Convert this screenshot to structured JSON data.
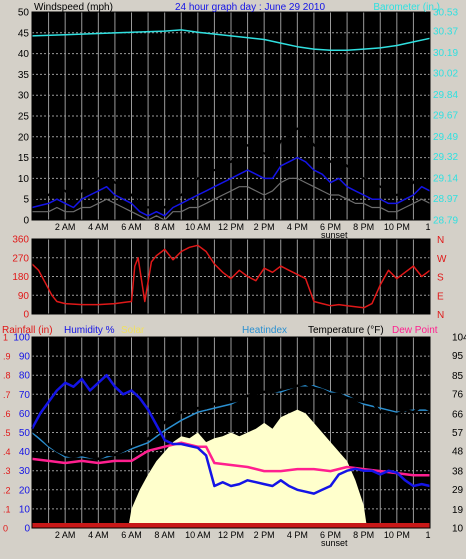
{
  "colors": {
    "bg": "#d4d0c8",
    "plot_bg": "#000000",
    "grid": "#9a9a9a",
    "frame": "#000000",
    "wind": "#000000",
    "gust_avg": "#1414e6",
    "wind_low": "#6e6e6e",
    "barometer": "#30e0e0",
    "direction": "#e01818",
    "rain_text": "#e01818",
    "humidity": "#1414e6",
    "solar_fill": "#ffffcc",
    "solar_text": "#f0e060",
    "heatindex": "#2a8fd0",
    "temperature": "#000000",
    "dewpoint": "#ff1f8f",
    "rain": "#c81818"
  },
  "time_labels": [
    "2 AM",
    "4 AM",
    "6 AM",
    "8 AM",
    "10 AM",
    "12 PM",
    "2 PM",
    "4 PM",
    "6 PM",
    "8 PM",
    "10 PM"
  ],
  "end_tick": "1",
  "sunset_label": "sunset",
  "chart_data": [
    {
      "type": "line",
      "title": "24 hour graph day : June 29 2010",
      "ylabel_left": "Windspeed (mph)",
      "ylabel_right": "Barometer (in.)",
      "x": [
        0,
        24
      ],
      "ylim": [
        0,
        50
      ],
      "yticks_left": [
        0,
        5,
        10,
        15,
        20,
        25,
        30,
        35,
        40,
        45,
        50
      ],
      "ylim_right": [
        28.79,
        30.53
      ],
      "yticks_right": [
        "28.79",
        "28.97",
        "29.14",
        "29.32",
        "29.49",
        "29.67",
        "29.84",
        "30.02",
        "30.19",
        "30.37",
        "30.53"
      ],
      "series": [
        {
          "name": "Barometer",
          "axis": "right",
          "x": [
            0,
            2,
            4,
            6,
            8,
            9,
            10,
            12,
            14,
            15,
            16,
            17,
            18,
            19,
            20,
            21,
            22,
            23,
            24
          ],
          "y": [
            30.33,
            30.34,
            30.35,
            30.36,
            30.37,
            30.38,
            30.36,
            30.33,
            30.3,
            30.27,
            30.24,
            30.22,
            30.21,
            30.21,
            30.22,
            30.23,
            30.25,
            30.28,
            30.31
          ]
        },
        {
          "axis": "left",
          "x": [
            0,
            1,
            1.5,
            2,
            2.5,
            3,
            3.5,
            4,
            4.5,
            5,
            5.5,
            6,
            6.5,
            7,
            7.5,
            8,
            8.5,
            9,
            9.5,
            10,
            10.5,
            11,
            11.5,
            12,
            12.5,
            13,
            13.5,
            14,
            14.5,
            15,
            15.5,
            16,
            16.5,
            17,
            17.5,
            18,
            18.5,
            19,
            19.5,
            20,
            20.5,
            21,
            21.5,
            22,
            22.5,
            23,
            23.5,
            24
          ],
          "y": [
            5,
            6,
            8,
            7,
            5,
            7,
            9,
            10,
            11,
            9,
            8,
            6,
            4,
            3,
            4,
            3,
            5,
            6,
            8,
            10,
            11,
            12,
            13,
            14,
            16,
            18,
            17,
            16,
            15,
            19,
            20,
            22,
            21,
            18,
            16,
            14,
            15,
            13,
            11,
            10,
            9,
            8,
            7,
            6,
            7,
            9,
            12,
            10
          ]
        },
        {
          "axis": "left",
          "x": [
            0,
            1,
            1.5,
            2,
            2.5,
            3,
            3.5,
            4,
            4.5,
            5,
            5.5,
            6,
            6.5,
            7,
            7.5,
            8,
            8.5,
            9,
            9.5,
            10,
            10.5,
            11,
            11.5,
            12,
            12.5,
            13,
            13.5,
            14,
            14.5,
            15,
            15.5,
            16,
            16.5,
            17,
            17.5,
            18,
            18.5,
            19,
            19.5,
            20,
            20.5,
            21,
            21.5,
            22,
            22.5,
            23,
            23.5,
            24
          ],
          "y": [
            3,
            4,
            5,
            4,
            3,
            5,
            6,
            7,
            8,
            6,
            5,
            4,
            2,
            1,
            2,
            1,
            3,
            4,
            5,
            6,
            7,
            8,
            9,
            10,
            11,
            12,
            11,
            10,
            10,
            13,
            14,
            15,
            14,
            12,
            11,
            9,
            10,
            8,
            7,
            6,
            5,
            5,
            4,
            4,
            5,
            6,
            8,
            7
          ]
        },
        {
          "axis": "left",
          "x": [
            0,
            1,
            1.5,
            2,
            2.5,
            3,
            3.5,
            4,
            4.5,
            5,
            5.5,
            6,
            6.5,
            7,
            7.5,
            8,
            8.5,
            9,
            9.5,
            10,
            10.5,
            11,
            11.5,
            12,
            12.5,
            13,
            13.5,
            14,
            14.5,
            15,
            15.5,
            16,
            16.5,
            17,
            17.5,
            18,
            18.5,
            19,
            19.5,
            20,
            20.5,
            21,
            21.5,
            22,
            22.5,
            23,
            23.5,
            24
          ],
          "y": [
            2,
            2,
            3,
            2,
            2,
            3,
            3,
            4,
            5,
            4,
            3,
            2,
            1,
            0,
            1,
            0,
            2,
            2,
            3,
            3,
            4,
            5,
            6,
            7,
            8,
            8,
            7,
            6,
            7,
            9,
            10,
            10,
            9,
            8,
            7,
            6,
            6,
            5,
            4,
            4,
            3,
            3,
            2,
            2,
            3,
            4,
            5,
            4
          ]
        }
      ]
    },
    {
      "type": "line",
      "ylabel_right": [
        "N",
        "W",
        "S",
        "E",
        "N"
      ],
      "ylim": [
        0,
        360
      ],
      "yticks_left": [
        0,
        90,
        180,
        270,
        360
      ],
      "series": [
        {
          "name": "Wind direction",
          "x": [
            0,
            0.4,
            0.8,
            1.2,
            1.5,
            2,
            3,
            4,
            5,
            5.5,
            6,
            6.2,
            6.4,
            6.8,
            7.2,
            7.5,
            8,
            8.5,
            9,
            9.5,
            10,
            10.5,
            11,
            11.5,
            12,
            12.5,
            13,
            13.5,
            14,
            14.5,
            15,
            15.5,
            16,
            16.5,
            17,
            17.5,
            18,
            18.5,
            19,
            19.5,
            20,
            20.5,
            21,
            21.5,
            22,
            22.5,
            23,
            23.5,
            24
          ],
          "y": [
            240,
            210,
            150,
            90,
            60,
            50,
            45,
            45,
            50,
            55,
            60,
            230,
            270,
            60,
            250,
            280,
            310,
            260,
            300,
            320,
            330,
            300,
            240,
            200,
            170,
            210,
            180,
            160,
            220,
            200,
            230,
            210,
            190,
            170,
            60,
            50,
            40,
            45,
            40,
            35,
            30,
            50,
            140,
            210,
            170,
            200,
            230,
            180,
            210
          ]
        }
      ]
    },
    {
      "type": "line",
      "ylabel_left": [
        "Rainfall (in)",
        "Humidity %",
        "Solar"
      ],
      "ylabel_right": [
        "Heatindex",
        "Temperature (°F)",
        "Dew Point"
      ],
      "ylim": [
        0,
        100
      ],
      "yticks_left": [
        0,
        10,
        20,
        30,
        40,
        50,
        60,
        70,
        80,
        90,
        100
      ],
      "yticks_rain": [
        "0",
        ".1",
        ".2",
        ".3",
        ".4",
        ".5",
        ".6",
        ".7",
        ".8",
        ".9",
        "1"
      ],
      "ylim_right": [
        10,
        104
      ],
      "yticks_right": [
        10,
        19,
        29,
        38,
        48,
        57,
        66,
        76,
        85,
        95,
        104
      ],
      "series": [
        {
          "name": "Solar",
          "axis": "left",
          "x": [
            0,
            5.8,
            6,
            6.5,
            7,
            7.5,
            8,
            8.5,
            9,
            9.5,
            10,
            10.5,
            11,
            11.5,
            12,
            12.5,
            13,
            13.5,
            14,
            14.5,
            15,
            15.5,
            16,
            16.5,
            17,
            17.5,
            18,
            18.5,
            19,
            19.5,
            20,
            20.2,
            24
          ],
          "y": [
            0,
            0,
            10,
            20,
            28,
            35,
            40,
            45,
            48,
            47,
            50,
            45,
            47,
            48,
            50,
            48,
            50,
            52,
            55,
            52,
            58,
            60,
            62,
            60,
            55,
            50,
            45,
            40,
            35,
            25,
            12,
            0,
            0
          ]
        },
        {
          "name": "Humidity",
          "axis": "left",
          "x": [
            0,
            0.5,
            1,
            1.5,
            2,
            2.5,
            3,
            3.5,
            4,
            4.5,
            5,
            5.5,
            6,
            6.5,
            7,
            7.5,
            8,
            8.5,
            9,
            9.5,
            10,
            10.5,
            11,
            11.5,
            12,
            12.5,
            13,
            13.5,
            14,
            14.5,
            15,
            15.5,
            16,
            16.5,
            17,
            17.5,
            18,
            18.5,
            19,
            19.5,
            20,
            20.5,
            21,
            21.5,
            22,
            22.5,
            23,
            23.5,
            24
          ],
          "y": [
            52,
            60,
            66,
            72,
            76,
            74,
            78,
            72,
            76,
            80,
            74,
            70,
            72,
            68,
            62,
            54,
            46,
            44,
            44,
            43,
            42,
            38,
            22,
            24,
            22,
            23,
            25,
            24,
            23,
            22,
            25,
            22,
            20,
            19,
            18,
            20,
            22,
            28,
            30,
            31,
            30,
            30,
            28,
            30,
            29,
            25,
            22,
            23,
            22
          ]
        },
        {
          "name": "Heatindex",
          "axis": "right",
          "x": [
            0,
            1,
            2,
            3,
            4,
            5,
            6,
            7,
            8,
            9,
            10,
            11,
            12,
            13,
            14,
            15,
            16,
            17,
            18,
            19,
            20,
            21,
            22,
            23,
            24
          ],
          "y": [
            57,
            50,
            45,
            45,
            44,
            46,
            49,
            52,
            58,
            63,
            67,
            69,
            71,
            75,
            77,
            77,
            80,
            80,
            77,
            75,
            71,
            69,
            67,
            68,
            68
          ]
        },
        {
          "name": "Temperature",
          "axis": "right",
          "x": [
            0,
            0.5,
            1,
            1.5,
            2,
            2.5,
            3,
            3.5,
            4,
            4.5,
            5,
            5.5,
            6,
            6.5,
            7,
            7.5,
            8,
            8.5,
            9,
            9.5,
            10,
            10.5,
            11,
            11.5,
            12,
            12.5,
            13,
            13.5,
            14,
            14.5,
            15,
            15.5,
            16,
            16.5,
            17,
            17.5,
            18,
            18.5,
            19,
            19.5,
            20,
            20.5,
            21,
            21.5,
            22,
            22.5,
            23,
            23.5,
            24
          ],
          "y": [
            58,
            55,
            51,
            48,
            46,
            45,
            46,
            45,
            44,
            46,
            46,
            48,
            50,
            52,
            54,
            58,
            62,
            65,
            67,
            68,
            69,
            69,
            71,
            72,
            72,
            73,
            75,
            76,
            77,
            77,
            78,
            79,
            80,
            81,
            79,
            78,
            76,
            76,
            74,
            73,
            72,
            72,
            67,
            67,
            66,
            68,
            67,
            70,
            68
          ]
        },
        {
          "name": "Dew Point",
          "axis": "right",
          "x": [
            0,
            1,
            2,
            3,
            4,
            5,
            6,
            7,
            8,
            9,
            10,
            10.5,
            11,
            12,
            13,
            14,
            15,
            16,
            17,
            18,
            19,
            20,
            21,
            22,
            23,
            24
          ],
          "y": [
            44,
            43,
            42,
            43,
            42,
            43,
            43,
            48,
            50,
            52,
            50,
            50,
            42,
            41,
            40,
            38,
            38,
            39,
            39,
            38,
            40,
            39,
            38,
            37,
            36,
            36
          ]
        },
        {
          "name": "Rainfall",
          "axis": "rain",
          "x": [
            0,
            24
          ],
          "y": [
            0,
            0
          ]
        }
      ]
    }
  ]
}
